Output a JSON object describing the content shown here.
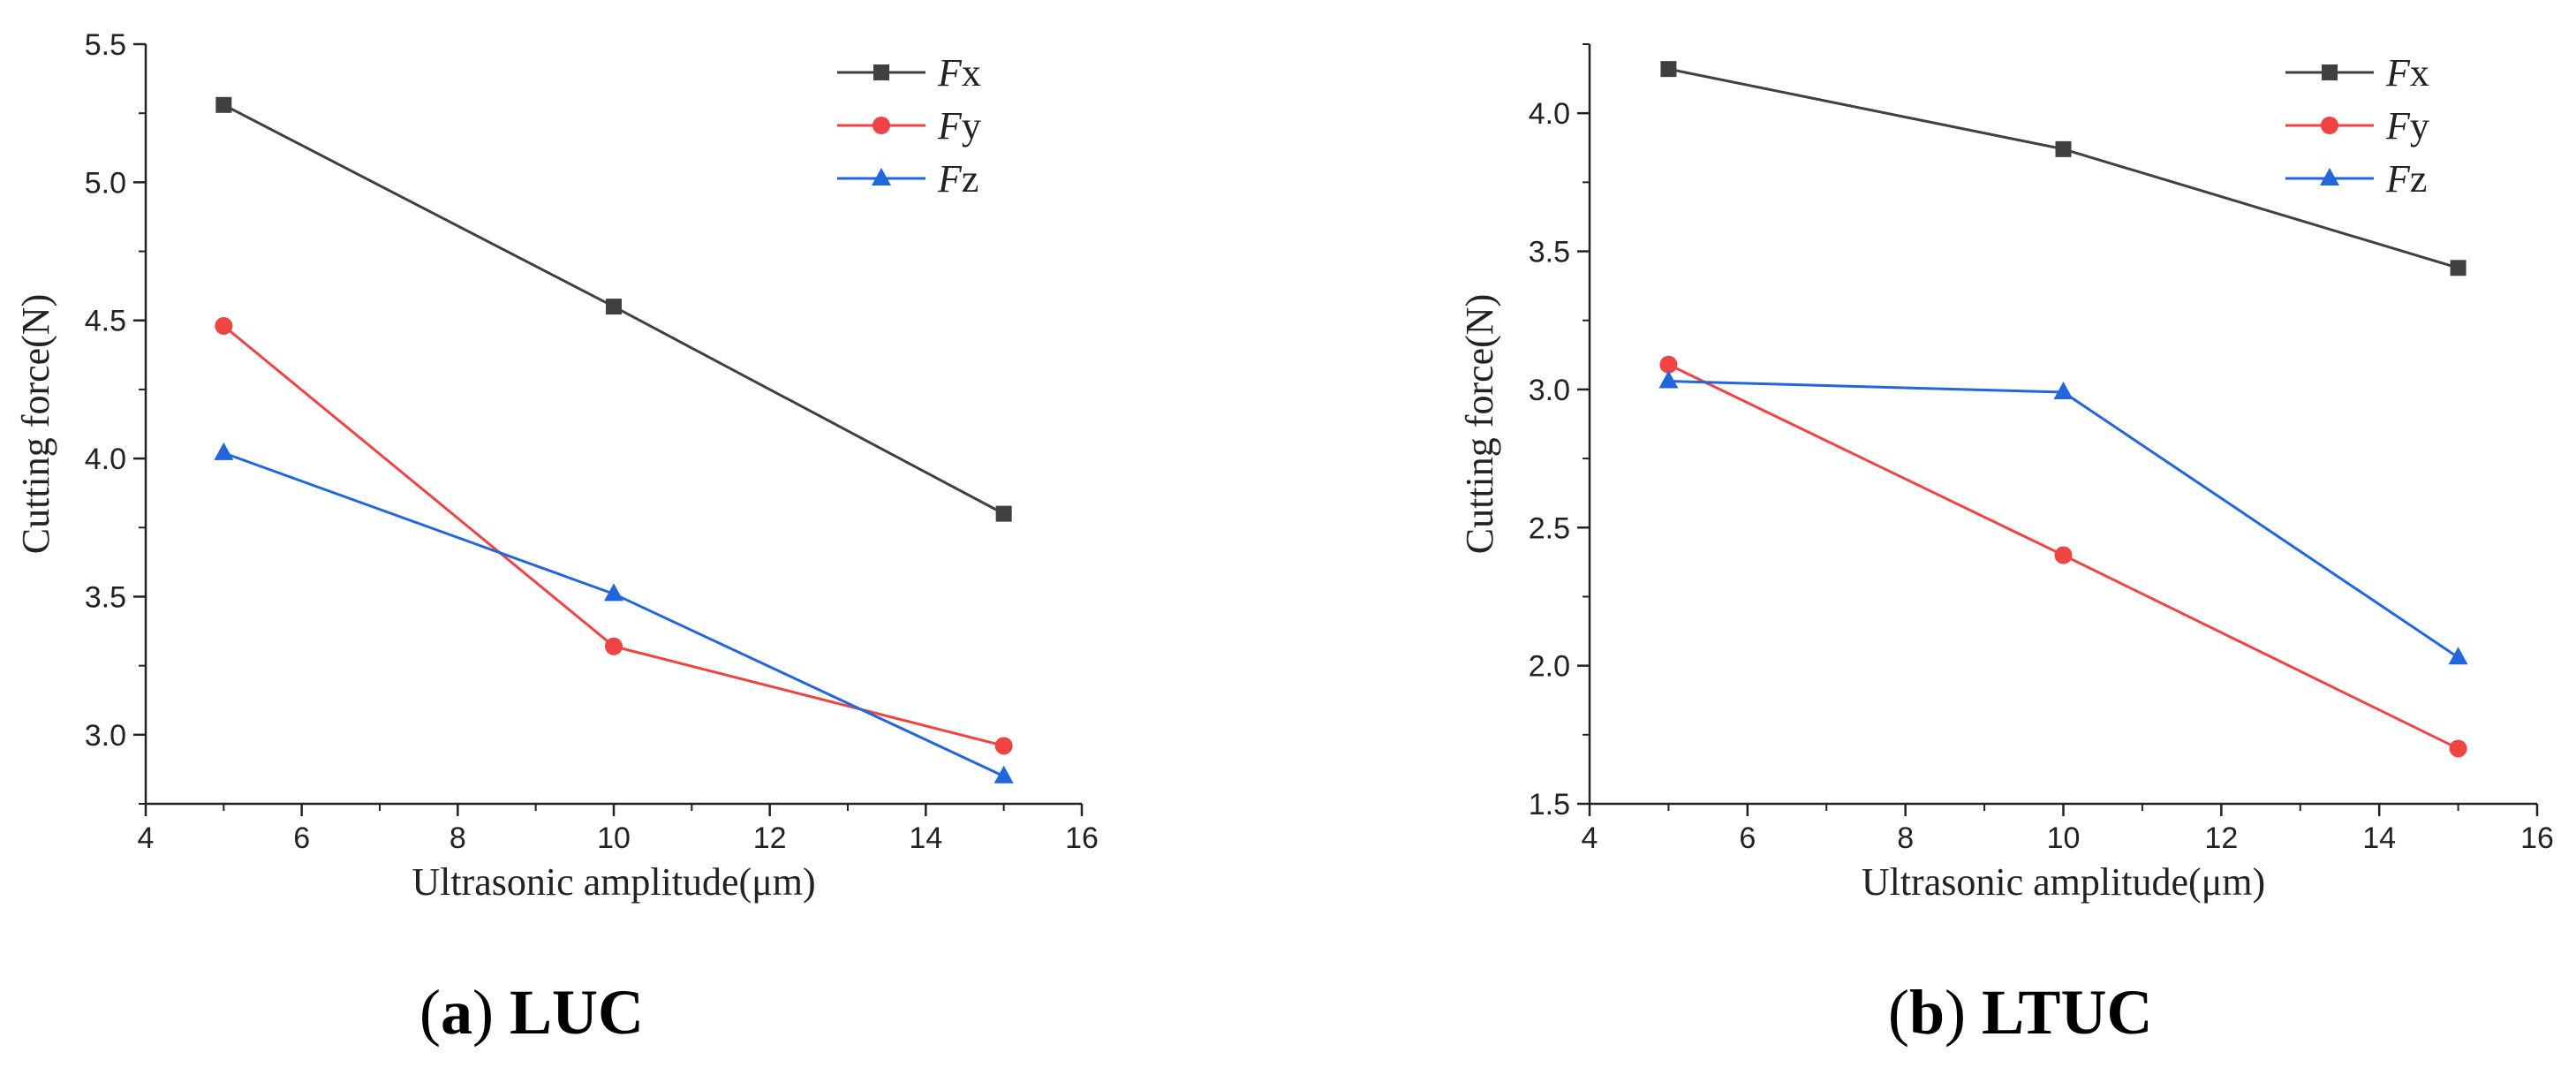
{
  "chart_data": [
    {
      "type": "line",
      "caption_letter": "a",
      "caption_name": "LUC",
      "xlabel": "Ultrasonic amplitude(μm)",
      "ylabel": "Cutting force(N)",
      "xlim": [
        4,
        16
      ],
      "ylim": [
        2.75,
        5.5
      ],
      "xticks": [
        4,
        6,
        8,
        10,
        12,
        14,
        16
      ],
      "yticks": [
        3.0,
        3.5,
        4.0,
        4.5,
        5.0,
        5.5
      ],
      "y_decimals": 1,
      "legend_position": "top-right",
      "x": [
        5,
        10,
        15
      ],
      "series": [
        {
          "name_italic": "F",
          "name_sub": "x",
          "marker": "square",
          "color": "#404040",
          "values": [
            5.28,
            4.55,
            3.8
          ]
        },
        {
          "name_italic": "F",
          "name_sub": "y",
          "marker": "circle",
          "color": "#ee4444",
          "values": [
            4.48,
            3.32,
            2.96
          ]
        },
        {
          "name_italic": "F",
          "name_sub": "z",
          "marker": "triangle",
          "color": "#2266dd",
          "values": [
            4.02,
            3.51,
            2.85
          ]
        }
      ]
    },
    {
      "type": "line",
      "caption_letter": "b",
      "caption_name": "LTUC",
      "xlabel": "Ultrasonic amplitude(μm)",
      "ylabel": "Cutting force(N)",
      "xlim": [
        4,
        16
      ],
      "ylim": [
        1.5,
        4.25
      ],
      "xticks": [
        4,
        6,
        8,
        10,
        12,
        14,
        16
      ],
      "yticks": [
        1.5,
        2.0,
        2.5,
        3.0,
        3.5,
        4.0
      ],
      "y_decimals": 1,
      "legend_position": "top-right",
      "x": [
        5,
        10,
        15
      ],
      "series": [
        {
          "name_italic": "F",
          "name_sub": "x",
          "marker": "square",
          "color": "#404040",
          "values": [
            4.16,
            3.87,
            3.44
          ]
        },
        {
          "name_italic": "F",
          "name_sub": "y",
          "marker": "circle",
          "color": "#ee4444",
          "values": [
            3.09,
            2.4,
            1.7
          ]
        },
        {
          "name_italic": "F",
          "name_sub": "z",
          "marker": "triangle",
          "color": "#2266dd",
          "values": [
            3.03,
            2.99,
            2.03
          ]
        }
      ]
    }
  ]
}
